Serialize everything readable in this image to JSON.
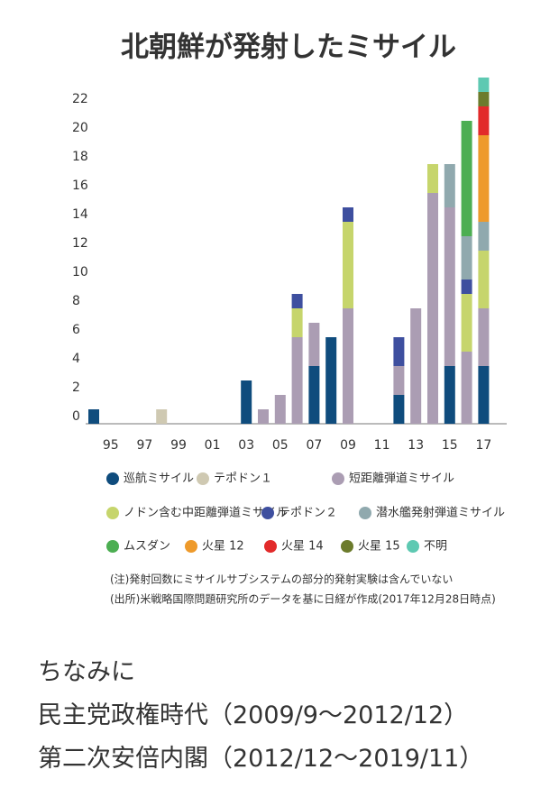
{
  "chart_data": {
    "type": "stacked_bar",
    "title": "北朝鮮が発射したミサイル",
    "categories": [
      null,
      "95",
      null,
      "97",
      null,
      "99",
      null,
      "01",
      null,
      "03",
      null,
      "05",
      null,
      "07",
      null,
      "09",
      null,
      "11",
      null,
      "13",
      null,
      "15",
      null,
      "17"
    ],
    "ylim": [
      0,
      24
    ],
    "yticks": [
      0,
      2,
      4,
      6,
      8,
      10,
      12,
      14,
      16,
      18,
      20,
      22
    ],
    "series": [
      {
        "name": "巡航ミサイル",
        "color": "#0f4c7d",
        "values": [
          1,
          0,
          0,
          0,
          0,
          0,
          0,
          0,
          0,
          3,
          0,
          0,
          0,
          4,
          6,
          0,
          0,
          0,
          2,
          0,
          0,
          4,
          0,
          4
        ]
      },
      {
        "name": "テポドン１",
        "color": "#cfc9b2",
        "values": [
          0,
          0,
          0,
          0,
          1,
          0,
          0,
          0,
          0,
          0,
          0,
          0,
          0,
          0,
          0,
          0,
          0,
          0,
          0,
          0,
          0,
          0,
          0,
          0
        ]
      },
      {
        "name": "短距離弾道ミサイル",
        "color": "#ab9db3",
        "values": [
          0,
          0,
          0,
          0,
          0,
          0,
          0,
          0,
          0,
          0,
          1,
          2,
          6,
          3,
          0,
          8,
          0,
          0,
          2,
          8,
          16,
          11,
          5,
          4
        ]
      },
      {
        "name": "ノドン含む中距離弾道ミサイル",
        "color": "#c6d56c",
        "values": [
          0,
          0,
          0,
          0,
          0,
          0,
          0,
          0,
          0,
          0,
          0,
          0,
          2,
          0,
          0,
          6,
          0,
          0,
          0,
          0,
          2,
          0,
          4,
          4
        ]
      },
      {
        "name": "テポドン２",
        "color": "#3e4f9f",
        "values": [
          0,
          0,
          0,
          0,
          0,
          0,
          0,
          0,
          0,
          0,
          0,
          0,
          1,
          0,
          0,
          1,
          0,
          0,
          2,
          0,
          0,
          0,
          1,
          0
        ]
      },
      {
        "name": "潜水艦発射弾道ミサイル",
        "color": "#90a9ae",
        "values": [
          0,
          0,
          0,
          0,
          0,
          0,
          0,
          0,
          0,
          0,
          0,
          0,
          0,
          0,
          0,
          0,
          0,
          0,
          0,
          0,
          0,
          3,
          3,
          2
        ]
      },
      {
        "name": "ムスダン",
        "color": "#4cae52",
        "values": [
          0,
          0,
          0,
          0,
          0,
          0,
          0,
          0,
          0,
          0,
          0,
          0,
          0,
          0,
          0,
          0,
          0,
          0,
          0,
          0,
          0,
          0,
          8,
          0
        ]
      },
      {
        "name": "火星 12",
        "color": "#ee9a2b",
        "values": [
          0,
          0,
          0,
          0,
          0,
          0,
          0,
          0,
          0,
          0,
          0,
          0,
          0,
          0,
          0,
          0,
          0,
          0,
          0,
          0,
          0,
          0,
          0,
          6
        ]
      },
      {
        "name": "火星 14",
        "color": "#e22a2a",
        "values": [
          0,
          0,
          0,
          0,
          0,
          0,
          0,
          0,
          0,
          0,
          0,
          0,
          0,
          0,
          0,
          0,
          0,
          0,
          0,
          0,
          0,
          0,
          0,
          2
        ]
      },
      {
        "name": "火星 15",
        "color": "#6c7b2c",
        "values": [
          0,
          0,
          0,
          0,
          0,
          0,
          0,
          0,
          0,
          0,
          0,
          0,
          0,
          0,
          0,
          0,
          0,
          0,
          0,
          0,
          0,
          0,
          0,
          1
        ]
      },
      {
        "name": "不明",
        "color": "#5ec9b2",
        "values": [
          0,
          0,
          0,
          0,
          0,
          0,
          0,
          0,
          0,
          0,
          0,
          0,
          0,
          0,
          0,
          0,
          0,
          0,
          0,
          0,
          0,
          0,
          0,
          1
        ]
      }
    ],
    "notes": [
      "(注)発射回数にミサイルサブシステムの部分的発射実験は含んでいない",
      "(出所)米戦略国際問題研究所のデータを基に日経が作成(2017年12月28日時点)"
    ]
  },
  "caption": [
    "ちなみに",
    "民主党政権時代（2009/9〜2012/12）",
    "第二次安倍内閣（2012/12〜2019/11）"
  ]
}
